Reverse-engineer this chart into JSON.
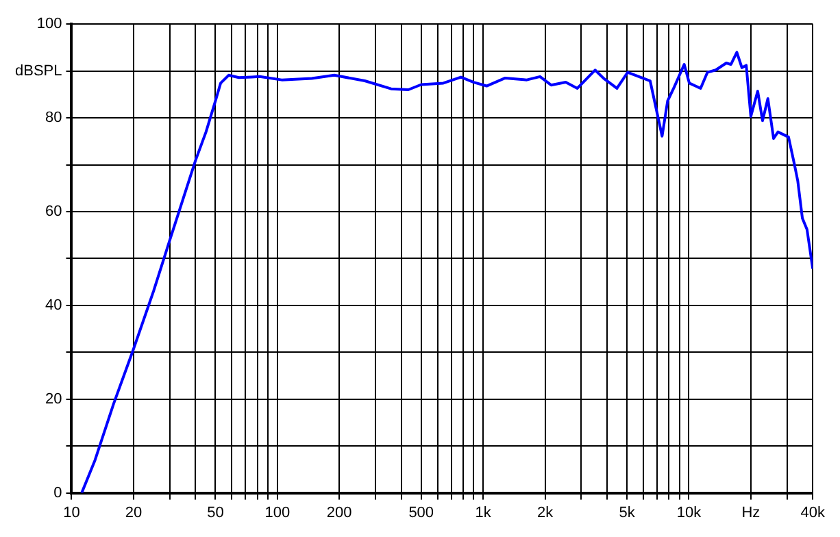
{
  "chart_data": {
    "type": "line",
    "log": "x",
    "grid": true,
    "legend": false,
    "marker": "none",
    "line_style": "solid",
    "xlim": [
      10,
      40000
    ],
    "xticks": [
      10,
      {
        "value": 20,
        "label": "20"
      },
      {
        "value": 30,
        "label": null
      },
      {
        "value": 40,
        "label": null
      },
      50,
      {
        "value": 60,
        "label": null
      },
      {
        "value": 70,
        "label": null
      },
      {
        "value": 80,
        "label": null
      },
      {
        "value": 90,
        "label": null
      },
      100,
      200,
      {
        "value": 300,
        "label": null
      },
      {
        "value": 400,
        "label": null
      },
      500,
      {
        "value": 600,
        "label": null
      },
      {
        "value": 700,
        "label": null
      },
      {
        "value": 800,
        "label": null
      },
      {
        "value": 900,
        "label": null
      },
      {
        "value": 1000,
        "label": "1k"
      },
      {
        "value": 2000,
        "label": "2k"
      },
      {
        "value": 3000,
        "label": null
      },
      {
        "value": 4000,
        "label": null
      },
      {
        "value": 5000,
        "label": "5k"
      },
      {
        "value": 6000,
        "label": null
      },
      {
        "value": 7000,
        "label": null
      },
      {
        "value": 8000,
        "label": null
      },
      {
        "value": 9000,
        "label": null
      },
      {
        "value": 10000,
        "label": "10k"
      },
      {
        "value": 20000,
        "label": "Hz"
      },
      {
        "value": 30000,
        "label": null
      },
      {
        "value": 40000,
        "label": "40k"
      }
    ],
    "ylim": [
      0,
      100
    ],
    "yticks": [
      0,
      {
        "value": 10,
        "label": null
      },
      20,
      {
        "value": 30,
        "label": null
      },
      40,
      {
        "value": 50,
        "label": null
      },
      60,
      {
        "value": 70,
        "label": null
      },
      80,
      {
        "value": 90,
        "label": "dBSPL"
      },
      100
    ],
    "series": [
      {
        "color": "#0000ff",
        "x": [
          11.2,
          13,
          16,
          20,
          25,
          30,
          35,
          40,
          45,
          50,
          53,
          58,
          65,
          75,
          82,
          105,
          147,
          189,
          266,
          357,
          433,
          500,
          640,
          780,
          900,
          1040,
          1280,
          1630,
          1890,
          2140,
          2520,
          2870,
          3500,
          3860,
          4470,
          5040,
          6480,
          7410,
          7880,
          8470,
          9490,
          10050,
          11400,
          12300,
          13500,
          15200,
          16000,
          17100,
          18100,
          19000,
          20000,
          21600,
          22800,
          24200,
          25800,
          27100,
          30500,
          32600,
          33800,
          35600,
          37500,
          40000
        ],
        "values": [
          0,
          7,
          19,
          30.7,
          43,
          53.9,
          63,
          70.9,
          77,
          83.6,
          87.4,
          89.1,
          88.6,
          88.7,
          88.8,
          88.1,
          88.4,
          89.1,
          87.9,
          86.2,
          86,
          87.1,
          87.4,
          88.7,
          87.6,
          86.8,
          88.5,
          88.1,
          88.8,
          87,
          87.6,
          86.3,
          90.2,
          88.4,
          86.3,
          89.7,
          87.9,
          76.1,
          83.6,
          86.5,
          91.4,
          87.4,
          86.3,
          89.7,
          90.2,
          91.7,
          91.4,
          94,
          90.7,
          91.2,
          80.3,
          85.7,
          79.4,
          84.1,
          75.6,
          77,
          75.9,
          70,
          66.6,
          58.6,
          56.2,
          47.8
        ]
      }
    ]
  }
}
